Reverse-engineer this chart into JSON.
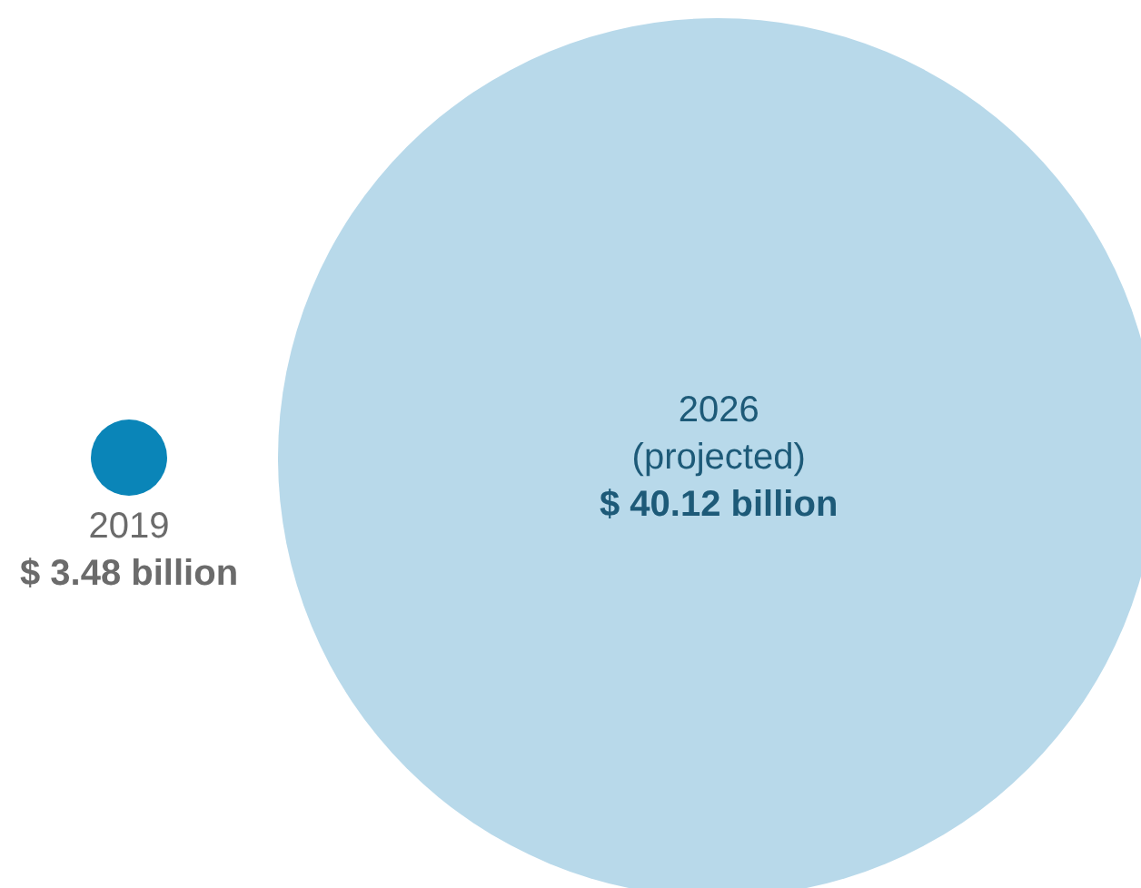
{
  "chart_data": {
    "type": "other",
    "categories": [
      "2019",
      "2026\n(projected)"
    ],
    "values": [
      3.48,
      40.12
    ],
    "value_labels": [
      "$ 3.48 billion",
      "$ 40.12 billion"
    ],
    "colors": [
      "#0a85b8",
      "#b8d9ea"
    ]
  }
}
